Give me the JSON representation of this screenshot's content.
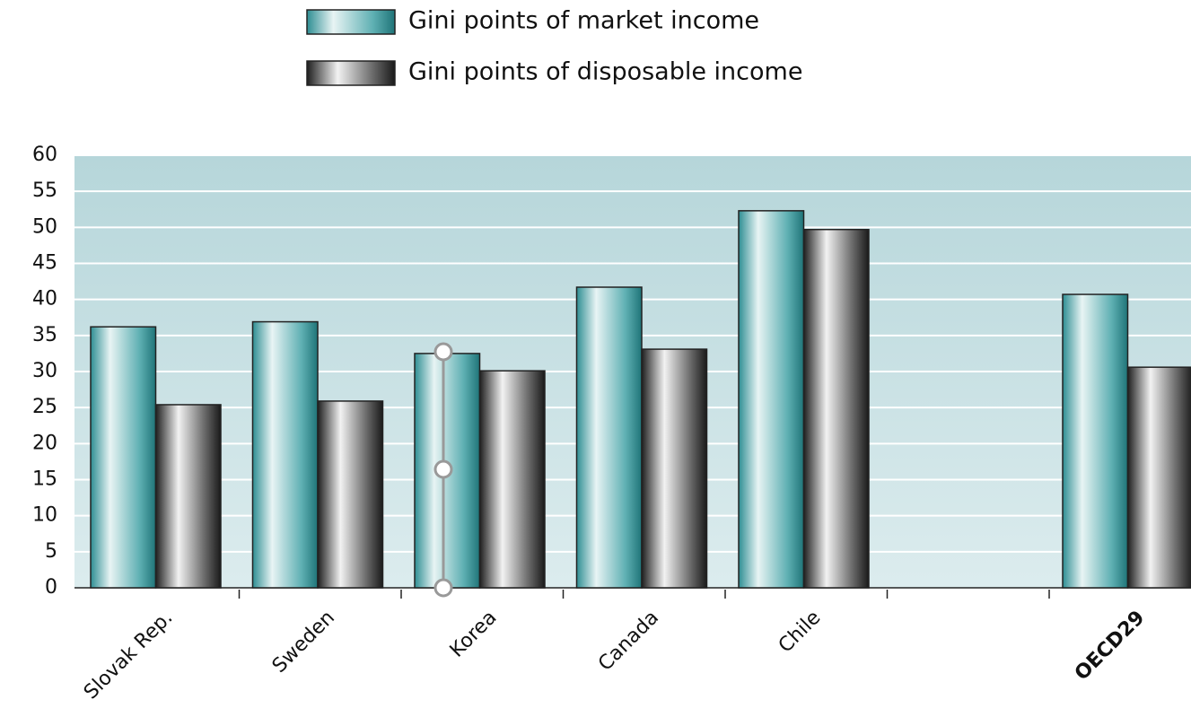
{
  "chart_data": {
    "type": "bar",
    "categories": [
      "Slovak Rep.",
      "Sweden",
      "Korea",
      "Canada",
      "Chile",
      null,
      "OECD29"
    ],
    "series": [
      {
        "name": "Gini points of market income",
        "color": "#3f9ea2",
        "values": [
          36.2,
          36.9,
          32.5,
          41.7,
          52.3,
          null,
          40.7
        ]
      },
      {
        "name": "Gini points of disposable income",
        "color": "#4a4a4a",
        "values": [
          25.4,
          25.9,
          30.1,
          33.1,
          49.7,
          null,
          30.6
        ]
      }
    ],
    "ylim": [
      0,
      60
    ],
    "yticks": [
      0,
      5,
      10,
      15,
      20,
      25,
      30,
      35,
      40,
      45,
      50,
      55,
      60
    ],
    "grid": true
  }
}
